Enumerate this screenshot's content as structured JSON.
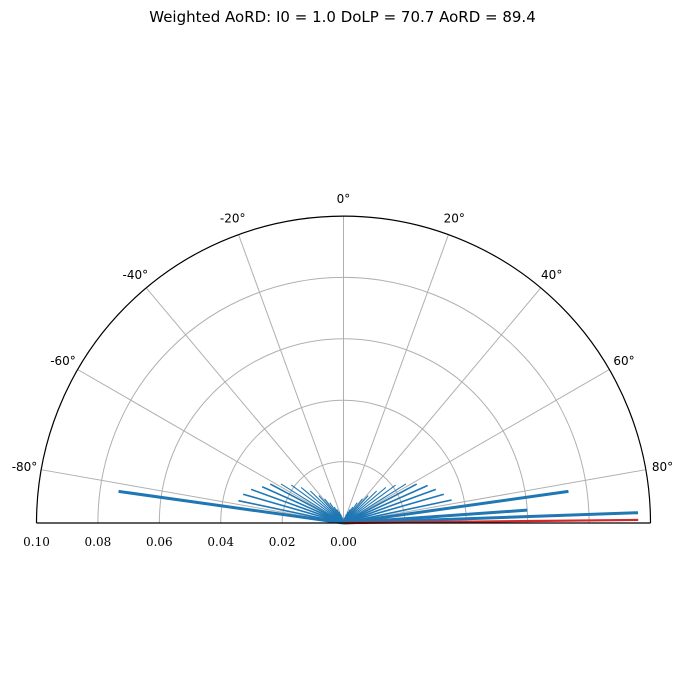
{
  "chart_data": {
    "type": "polar-half",
    "title": "Weighted AoRD: I0 = 1.0 DoLP = 70.7 AoRD = 89.4",
    "theta_ticks": [
      "-80°",
      "-60°",
      "-40°",
      "-20°",
      "0°",
      "20°",
      "40°",
      "60°",
      "80°"
    ],
    "theta_tick_values": [
      -80,
      -60,
      -40,
      -20,
      0,
      20,
      40,
      60,
      80
    ],
    "r_ticks": [
      "0.10",
      "0.08",
      "0.06",
      "0.04",
      "0.02",
      "0.00"
    ],
    "rlim": [
      0,
      0.1
    ],
    "grid": true,
    "colors": {
      "series": "#1f77b4",
      "result": "#d62728",
      "grid": "#b0b0b0"
    },
    "series": {
      "angles_deg": [
        -82,
        -78,
        -74,
        -70,
        -66,
        -62,
        -58,
        -54,
        -50,
        -46,
        -42,
        -38,
        -34,
        -30,
        -26,
        -22,
        -18,
        -14,
        -10,
        -6,
        -2,
        2,
        6,
        10,
        14,
        18,
        22,
        26,
        30,
        34,
        38,
        42,
        46,
        50,
        54,
        58,
        62,
        66,
        70,
        74,
        78,
        82,
        86,
        88
      ],
      "values": [
        0.074,
        0.035,
        0.034,
        0.032,
        0.029,
        0.027,
        0.024,
        0.021,
        0.018,
        0.015,
        0.012,
        0.01,
        0.008,
        0.006,
        0.005,
        0.004,
        0.003,
        0.002,
        0.0015,
        0.001,
        0.0008,
        0.0008,
        0.001,
        0.0015,
        0.002,
        0.003,
        0.004,
        0.005,
        0.006,
        0.008,
        0.01,
        0.012,
        0.015,
        0.018,
        0.021,
        0.024,
        0.027,
        0.03,
        0.032,
        0.034,
        0.036,
        0.074,
        0.06,
        0.096
      ]
    },
    "result_vector": {
      "angle_deg": 89.4,
      "value": 0.096
    }
  }
}
